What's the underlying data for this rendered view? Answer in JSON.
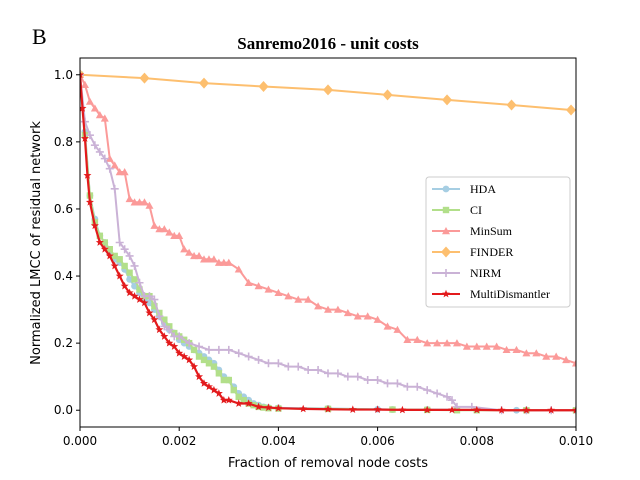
{
  "panel_label": "B",
  "chart_data": {
    "type": "line",
    "title": "Sanremo2016 - unit costs",
    "xlabel": "Fraction of removal node costs",
    "ylabel": "Normalized LMCC of residual network",
    "xlim": [
      0,
      0.01
    ],
    "ylim": [
      -0.05,
      1.05
    ],
    "x_ticks": [
      0,
      0.002,
      0.004,
      0.006,
      0.008,
      0.01
    ],
    "x_tick_labels": [
      "0.000",
      "0.002",
      "0.004",
      "0.006",
      "0.008",
      "0.010"
    ],
    "y_ticks": [
      0.0,
      0.2,
      0.4,
      0.6,
      0.8,
      1.0
    ],
    "y_tick_labels": [
      "0.0",
      "0.2",
      "0.4",
      "0.6",
      "0.8",
      "1.0"
    ],
    "grid": false,
    "legend_position": "center-right",
    "series": [
      {
        "name": "HDA",
        "color": "#a6cee3",
        "marker": "circle",
        "x": [
          0,
          0.0001,
          0.0002,
          0.0003,
          0.0004,
          0.0005,
          0.0006,
          0.0007,
          0.0008,
          0.0009,
          0.001,
          0.0011,
          0.0012,
          0.0013,
          0.0014,
          0.0015,
          0.0016,
          0.0017,
          0.0018,
          0.0019,
          0.002,
          0.0021,
          0.0022,
          0.0023,
          0.0024,
          0.0025,
          0.0026,
          0.0027,
          0.0028,
          0.0029,
          0.003,
          0.0031,
          0.0032,
          0.0033,
          0.0034,
          0.0035,
          0.0036,
          0.0037,
          0.0038,
          0.004,
          0.005,
          0.006,
          0.0063,
          0.007,
          0.008,
          0.0088,
          0.009,
          0.01
        ],
        "y": [
          1.0,
          0.83,
          0.64,
          0.57,
          0.52,
          0.5,
          0.47,
          0.45,
          0.44,
          0.42,
          0.39,
          0.37,
          0.35,
          0.33,
          0.32,
          0.3,
          0.28,
          0.26,
          0.24,
          0.23,
          0.21,
          0.2,
          0.19,
          0.18,
          0.17,
          0.16,
          0.15,
          0.14,
          0.12,
          0.1,
          0.09,
          0.07,
          0.05,
          0.04,
          0.03,
          0.02,
          0.015,
          0.01,
          0.008,
          0.007,
          0.005,
          0.003,
          0.002,
          0.002,
          0.001,
          0.0,
          0.0,
          0.0
        ]
      },
      {
        "name": "CI",
        "color": "#b2df8a",
        "marker": "square",
        "x": [
          0,
          0.0001,
          0.0002,
          0.0003,
          0.0004,
          0.0005,
          0.0006,
          0.0007,
          0.0008,
          0.0009,
          0.001,
          0.0011,
          0.0012,
          0.0013,
          0.0014,
          0.0015,
          0.0016,
          0.0017,
          0.0018,
          0.0019,
          0.002,
          0.0021,
          0.0022,
          0.0023,
          0.0024,
          0.0025,
          0.0026,
          0.0027,
          0.0028,
          0.0029,
          0.003,
          0.0031,
          0.0032,
          0.0033,
          0.0034,
          0.0035,
          0.0036,
          0.0037,
          0.0038,
          0.004,
          0.005,
          0.0063,
          0.007,
          0.0076,
          0.008,
          0.009,
          0.01
        ],
        "y": [
          1.0,
          0.82,
          0.64,
          0.56,
          0.52,
          0.5,
          0.48,
          0.46,
          0.45,
          0.43,
          0.41,
          0.39,
          0.36,
          0.34,
          0.34,
          0.31,
          0.29,
          0.27,
          0.25,
          0.23,
          0.22,
          0.21,
          0.2,
          0.18,
          0.16,
          0.15,
          0.14,
          0.13,
          0.11,
          0.09,
          0.09,
          0.06,
          0.04,
          0.03,
          0.02,
          0.015,
          0.01,
          0.008,
          0.006,
          0.005,
          0.004,
          0.002,
          0.001,
          0.0,
          0.0,
          0.0,
          0.0
        ]
      },
      {
        "name": "MinSum",
        "color": "#fb9a99",
        "marker": "triangle",
        "x": [
          0,
          0.0001,
          0.0002,
          0.0003,
          0.0004,
          0.0005,
          0.0006,
          0.0007,
          0.0008,
          0.0009,
          0.001,
          0.0011,
          0.0012,
          0.0013,
          0.0014,
          0.0015,
          0.0016,
          0.0017,
          0.0018,
          0.0019,
          0.002,
          0.0021,
          0.0022,
          0.0023,
          0.0024,
          0.0025,
          0.0026,
          0.0027,
          0.0028,
          0.0029,
          0.003,
          0.0032,
          0.0034,
          0.0036,
          0.0038,
          0.004,
          0.0042,
          0.0044,
          0.0046,
          0.0048,
          0.005,
          0.0052,
          0.0054,
          0.0056,
          0.0058,
          0.006,
          0.0062,
          0.0064,
          0.0066,
          0.0068,
          0.007,
          0.0072,
          0.0074,
          0.0076,
          0.0078,
          0.008,
          0.0082,
          0.0084,
          0.0086,
          0.0088,
          0.009,
          0.0092,
          0.0094,
          0.0096,
          0.0098,
          0.01
        ],
        "y": [
          1.0,
          0.97,
          0.92,
          0.9,
          0.88,
          0.87,
          0.75,
          0.73,
          0.71,
          0.71,
          0.63,
          0.62,
          0.62,
          0.62,
          0.61,
          0.55,
          0.54,
          0.54,
          0.53,
          0.52,
          0.52,
          0.48,
          0.47,
          0.46,
          0.46,
          0.45,
          0.45,
          0.45,
          0.44,
          0.44,
          0.44,
          0.42,
          0.38,
          0.37,
          0.36,
          0.35,
          0.34,
          0.33,
          0.33,
          0.31,
          0.3,
          0.3,
          0.29,
          0.28,
          0.28,
          0.27,
          0.25,
          0.24,
          0.21,
          0.21,
          0.2,
          0.2,
          0.2,
          0.2,
          0.19,
          0.19,
          0.19,
          0.19,
          0.18,
          0.18,
          0.17,
          0.17,
          0.16,
          0.16,
          0.15,
          0.14
        ]
      },
      {
        "name": "FINDER",
        "color": "#fdbf6f",
        "marker": "diamond",
        "x": [
          0,
          0.0013,
          0.0025,
          0.0037,
          0.005,
          0.0062,
          0.0074,
          0.0087,
          0.0099
        ],
        "y": [
          1.0,
          0.99,
          0.975,
          0.965,
          0.955,
          0.94,
          0.925,
          0.91,
          0.895
        ]
      },
      {
        "name": "NIRM",
        "color": "#cab2d6",
        "marker": "plus",
        "x": [
          0,
          0.0001,
          0.0002,
          0.0003,
          0.0004,
          0.0005,
          0.0006,
          0.0007,
          0.0008,
          0.0009,
          0.001,
          0.0011,
          0.0012,
          0.0013,
          0.0014,
          0.0015,
          0.0016,
          0.0017,
          0.0018,
          0.0019,
          0.002,
          0.0022,
          0.0024,
          0.0026,
          0.0028,
          0.003,
          0.0032,
          0.0034,
          0.0036,
          0.0038,
          0.004,
          0.0042,
          0.0044,
          0.0046,
          0.0048,
          0.005,
          0.0052,
          0.0054,
          0.0056,
          0.0058,
          0.006,
          0.0062,
          0.0064,
          0.0066,
          0.0068,
          0.007,
          0.0072,
          0.0074,
          0.0075,
          0.0076,
          0.0079,
          0.0085,
          0.009,
          0.0095,
          0.01
        ],
        "y": [
          1.0,
          0.86,
          0.82,
          0.79,
          0.77,
          0.75,
          0.72,
          0.66,
          0.5,
          0.48,
          0.46,
          0.43,
          0.38,
          0.34,
          0.34,
          0.33,
          0.28,
          0.25,
          0.24,
          0.22,
          0.22,
          0.2,
          0.19,
          0.18,
          0.18,
          0.18,
          0.17,
          0.16,
          0.15,
          0.14,
          0.14,
          0.13,
          0.13,
          0.12,
          0.12,
          0.11,
          0.11,
          0.1,
          0.1,
          0.09,
          0.09,
          0.08,
          0.08,
          0.07,
          0.07,
          0.06,
          0.05,
          0.04,
          0.03,
          0.01,
          0.01,
          0.0,
          0.0,
          0.0,
          0.0
        ]
      },
      {
        "name": "MultiDismantler",
        "color": "#e31a1c",
        "marker": "star",
        "x": [
          0,
          5e-05,
          0.0001,
          0.00015,
          0.0002,
          0.0003,
          0.0004,
          0.0005,
          0.0006,
          0.0007,
          0.0008,
          0.0009,
          0.001,
          0.0011,
          0.0012,
          0.0013,
          0.0014,
          0.0015,
          0.0016,
          0.0017,
          0.0018,
          0.0019,
          0.002,
          0.0021,
          0.0022,
          0.0023,
          0.0024,
          0.0025,
          0.0026,
          0.0027,
          0.0028,
          0.0029,
          0.003,
          0.0032,
          0.0034,
          0.0036,
          0.0038,
          0.004,
          0.0045,
          0.005,
          0.0055,
          0.006,
          0.0065,
          0.007,
          0.0075,
          0.008,
          0.0085,
          0.009,
          0.0095,
          0.01
        ],
        "y": [
          1.0,
          0.9,
          0.81,
          0.7,
          0.62,
          0.55,
          0.5,
          0.48,
          0.46,
          0.43,
          0.4,
          0.37,
          0.35,
          0.34,
          0.33,
          0.32,
          0.29,
          0.27,
          0.24,
          0.22,
          0.2,
          0.19,
          0.17,
          0.16,
          0.15,
          0.13,
          0.1,
          0.08,
          0.07,
          0.06,
          0.05,
          0.03,
          0.03,
          0.02,
          0.02,
          0.01,
          0.008,
          0.006,
          0.004,
          0.003,
          0.002,
          0.002,
          0.001,
          0.001,
          0.001,
          0.001,
          0.0,
          0.0,
          0.0,
          0.0
        ]
      }
    ]
  }
}
